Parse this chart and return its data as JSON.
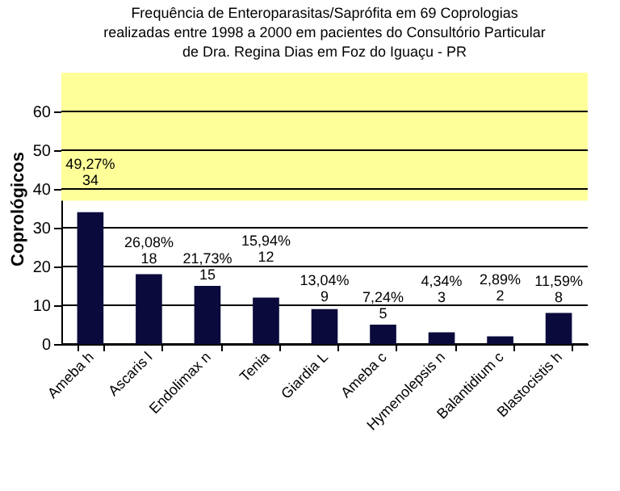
{
  "chart_data": {
    "type": "bar",
    "title": [
      "Frequência de Enteroparasitas/Saprófita em 69 Coprologias",
      "realizadas entre 1998 a 2000 em pacientes do Consultório Particular",
      "de Dra. Regina Dias em Foz do Iguaçu - PR"
    ],
    "ylabel": "Coprológicos",
    "categories": [
      "Ameba  h",
      "Ascaris l",
      "Endolimax n",
      "Tenia",
      "Giardia L",
      "Ameba c",
      "Hymenolepsis n",
      "Balantidium c",
      "Blastocistis h"
    ],
    "values": [
      34,
      18,
      15,
      12,
      9,
      5,
      3,
      2,
      8
    ],
    "color": "#0a0a3c",
    "data_labels": true,
    "ylim": [
      0,
      70
    ],
    "yticks": [
      0,
      10,
      20,
      30,
      40,
      50,
      60
    ],
    "grid": "y",
    "bands": [
      {
        "axis": "y",
        "from": 37,
        "to": 70,
        "color": "#ffff99"
      }
    ],
    "annotations": [
      "49,27%",
      "26,08%",
      "21,73%",
      "15,94%",
      "13,04%",
      "7,24%",
      "4,34%",
      "2,89%",
      "11,59%"
    ]
  }
}
